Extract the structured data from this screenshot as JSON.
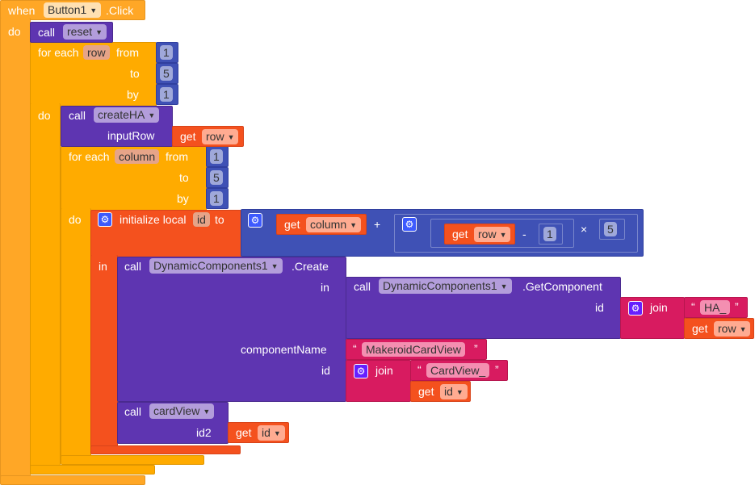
{
  "colors": {
    "event": "#FFA726",
    "control": "#FFAB00",
    "procedure": "#5E35B1",
    "variable": "#F4511E",
    "math": "#3F51B5",
    "text": "#D81B60"
  },
  "event": {
    "when": "when",
    "component": "Button1",
    "event": ".Click",
    "do": "do"
  },
  "reset": {
    "call": "call",
    "name": "reset"
  },
  "loop_row": {
    "for_each": "for each",
    "var": "row",
    "from": "from",
    "to": "to",
    "by": "by",
    "do": "do",
    "from_val": "1",
    "to_val": "5",
    "by_val": "1"
  },
  "createHA": {
    "call": "call",
    "name": "createHA",
    "param": "inputRow",
    "get": "get",
    "var": "row"
  },
  "loop_col": {
    "for_each": "for each",
    "var": "column",
    "from": "from",
    "to": "to",
    "by": "by",
    "do": "do",
    "from_val": "1",
    "to_val": "5",
    "by_val": "1"
  },
  "local": {
    "label": "initialize local",
    "var": "id",
    "to": "to",
    "in": "in",
    "icon": "gear-icon"
  },
  "math": {
    "get": "get",
    "var1": "column",
    "plus": "+",
    "var2": "row",
    "minus": "-",
    "minus_val": "1",
    "times": "×",
    "times_val": "5"
  },
  "create": {
    "call": "call",
    "component": "DynamicComponents1",
    "method": ".Create",
    "in": "in",
    "componentName": "componentName",
    "id": "id"
  },
  "getComp": {
    "call": "call",
    "component": "DynamicComponents1",
    "method": ".GetComponent",
    "id": "id",
    "join": "join",
    "str": "HA_",
    "get": "get",
    "var": "row"
  },
  "cardType": {
    "str": "MakeroidCardView"
  },
  "join2": {
    "join": "join",
    "str": "CardView_",
    "get": "get",
    "var": "id"
  },
  "cardView": {
    "call": "call",
    "name": "cardView",
    "param": "id2",
    "get": "get",
    "var": "id"
  },
  "quote_open": "“",
  "quote_close": "”"
}
